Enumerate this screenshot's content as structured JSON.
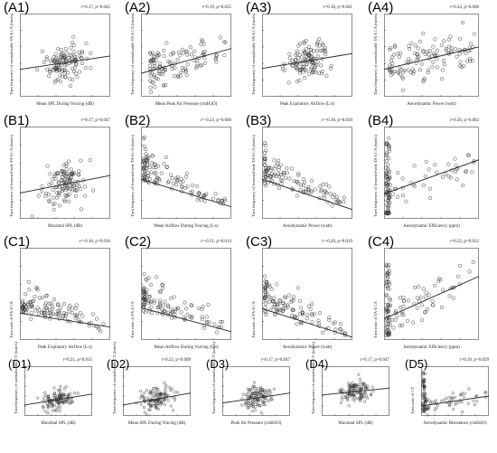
{
  "figure": {
    "panels": [
      {
        "id": "A1",
        "label": "(A1)",
        "stat": "r=0.17, p=0.045",
        "xlabel": "Mean SPL During Voicing (dB)",
        "ylabel": "Turn frequency of normalizable TA-LCA (turn/s)"
      },
      {
        "id": "A2",
        "label": "(A2)",
        "stat": "r=0.19, p=0.025",
        "xlabel": "Mean Peak Air Pressure (cmH2O)",
        "ylabel": "Turn frequency of normalizable TA-LCA (turn/s)"
      },
      {
        "id": "A3",
        "label": "(A3)",
        "stat": "r=0.18, p=0.041",
        "xlabel": "Peak Expiratory Airflow (L/s)",
        "ylabel": "Turn frequency of normalizable TA-LCA (turn/s)"
      },
      {
        "id": "A4",
        "label": "(A4)",
        "stat": "r=0.24, p=0.006",
        "xlabel": "Aerodynamic Power (watt)",
        "ylabel": "Turn frequency of normalizable TA-LCA (turn/s)"
      },
      {
        "id": "B1",
        "label": "(B1)",
        "stat": "r=0.17, p=0.047",
        "xlabel": "Maximal SPL (dB)",
        "ylabel": "Turn frequency of lessened-side TA-LCA (turn/s)"
      },
      {
        "id": "B2",
        "label": "(B2)",
        "stat": "r=-0.23, p=0.008",
        "xlabel": "Mean Airflow During Voicing (L/s)",
        "ylabel": "Turn frequency of lessened-side TA-LCA (turn/s)"
      },
      {
        "id": "B3",
        "label": "(B3)",
        "stat": "r=-0.18, p=0.039",
        "xlabel": "Aerodynamic Power (watt)",
        "ylabel": "Turn frequency of lessened-side TA-LCA (turn/s)"
      },
      {
        "id": "B4",
        "label": "(B4)",
        "stat": "r=0.26, p=0.002",
        "xlabel": "Aerodynamic Efficiency (ppm)",
        "ylabel": "Turn frequency of lessened-side TA-LCA (turn/s)"
      },
      {
        "id": "C1",
        "label": "(C1)",
        "stat": "r=-0.18, p=0.036",
        "xlabel": "Peak Expiratory Airflow (L/s)",
        "ylabel": "Turn ratio of TA-LCA"
      },
      {
        "id": "C2",
        "label": "(C2)",
        "stat": "r=-0.21, p=0.014",
        "xlabel": "Mean Airflow During Voicing (L/s)",
        "ylabel": "Turn ratio of TA-LCA"
      },
      {
        "id": "C3",
        "label": "(C3)",
        "stat": "r=-0.20, p=0.019",
        "xlabel": "Aerodynamic Power (watt)",
        "ylabel": "Turn ratio of TA-LCA"
      },
      {
        "id": "C4",
        "label": "(C4)",
        "stat": "r=0.22, p=0.012",
        "xlabel": "Aerodynamic Efficiency (ppm)",
        "ylabel": "Turn ratio of TA-LCA"
      },
      {
        "id": "D1",
        "label": "(D1)",
        "stat": "r=0.21, p=0.015",
        "xlabel": "Maximal SPL (dB)",
        "ylabel": "Turn frequency of normalizable CT (turn/s)"
      },
      {
        "id": "D2",
        "label": "(D2)",
        "stat": "r=0.22, p=0.009",
        "xlabel": "Mean SPL During Voicing (dB)",
        "ylabel": "Turn frequency of normalizable CT (turn/s)"
      },
      {
        "id": "D3",
        "label": "(D3)",
        "stat": "r=0.17, p=0.047",
        "xlabel": "Peak Air Pressure (cmH2O)",
        "ylabel": "Turn frequency of normalizable CT (turn/s)"
      },
      {
        "id": "D4",
        "label": "(D4)",
        "stat": "r=0.17, p=0.047",
        "xlabel": "Maximal SPL (dB)",
        "ylabel": "Turn frequency of normalizable CT (turn/s)"
      },
      {
        "id": "D5",
        "label": "(D5)",
        "stat": "r=0.19, p=0.029",
        "xlabel": "Aerodynamic Resistance (cmH2O)",
        "ylabel": "Turn ratio of CT"
      }
    ]
  },
  "chart_data": [
    {
      "type": "scatter",
      "panel": "A1",
      "r": 0.17,
      "p": 0.045,
      "pattern": "centered",
      "fit": {
        "x": [
          0,
          1
        ],
        "y": [
          0.33,
          0.49
        ]
      }
    },
    {
      "type": "scatter",
      "panel": "A2",
      "r": 0.19,
      "p": 0.025,
      "pattern": "left_cluster",
      "fit": {
        "x": [
          0,
          1
        ],
        "y": [
          0.28,
          0.58
        ]
      }
    },
    {
      "type": "scatter",
      "panel": "A3",
      "r": 0.18,
      "p": 0.041,
      "pattern": "centered",
      "fit": {
        "x": [
          0,
          1
        ],
        "y": [
          0.34,
          0.52
        ]
      }
    },
    {
      "type": "scatter",
      "panel": "A4",
      "r": 0.24,
      "p": 0.006,
      "pattern": "left_spread",
      "fit": {
        "x": [
          0,
          1
        ],
        "y": [
          0.33,
          0.6
        ]
      }
    },
    {
      "type": "scatter",
      "panel": "B1",
      "r": 0.17,
      "p": 0.047,
      "pattern": "centered",
      "fit": {
        "x": [
          0,
          1
        ],
        "y": [
          0.28,
          0.47
        ]
      }
    },
    {
      "type": "scatter",
      "panel": "B2",
      "r": -0.23,
      "p": 0.008,
      "pattern": "left_decay",
      "fit": {
        "x": [
          0,
          1
        ],
        "y": [
          0.43,
          0.13
        ]
      }
    },
    {
      "type": "scatter",
      "panel": "B3",
      "r": -0.18,
      "p": 0.039,
      "pattern": "left_decay",
      "fit": {
        "x": [
          0,
          1
        ],
        "y": [
          0.43,
          0.1
        ]
      }
    },
    {
      "type": "scatter",
      "panel": "B4",
      "r": 0.26,
      "p": 0.002,
      "pattern": "edge_column",
      "fit": {
        "x": [
          0,
          1
        ],
        "y": [
          0.27,
          0.64
        ]
      }
    },
    {
      "type": "scatter",
      "panel": "C1",
      "r": -0.18,
      "p": 0.036,
      "pattern": "left_decay",
      "fit": {
        "x": [
          0,
          1
        ],
        "y": [
          0.29,
          0.14
        ]
      }
    },
    {
      "type": "scatter",
      "panel": "C2",
      "r": -0.21,
      "p": 0.014,
      "pattern": "left_decay",
      "fit": {
        "x": [
          0,
          1
        ],
        "y": [
          0.35,
          0.09
        ]
      }
    },
    {
      "type": "scatter",
      "panel": "C3",
      "r": -0.2,
      "p": 0.019,
      "pattern": "left_decay",
      "fit": {
        "x": [
          0,
          1
        ],
        "y": [
          0.34,
          0.03
        ]
      }
    },
    {
      "type": "scatter",
      "panel": "C4",
      "r": 0.22,
      "p": 0.012,
      "pattern": "edge_column",
      "fit": {
        "x": [
          0,
          1
        ],
        "y": [
          0.23,
          0.69
        ]
      }
    },
    {
      "type": "scatter",
      "panel": "D1",
      "r": 0.21,
      "p": 0.015,
      "pattern": "centered",
      "fit": {
        "x": [
          0,
          1
        ],
        "y": [
          0.22,
          0.44
        ]
      }
    },
    {
      "type": "scatter",
      "panel": "D2",
      "r": 0.22,
      "p": 0.009,
      "pattern": "centered",
      "fit": {
        "x": [
          0,
          1
        ],
        "y": [
          0.22,
          0.46
        ]
      }
    },
    {
      "type": "scatter",
      "panel": "D3",
      "r": 0.17,
      "p": 0.047,
      "pattern": "centered",
      "fit": {
        "x": [
          0,
          1
        ],
        "y": [
          0.26,
          0.46
        ]
      }
    },
    {
      "type": "scatter",
      "panel": "D4",
      "r": 0.17,
      "p": 0.047,
      "pattern": "centered",
      "fit": {
        "x": [
          0,
          1
        ],
        "y": [
          0.42,
          0.56
        ]
      }
    },
    {
      "type": "scatter",
      "panel": "D5",
      "r": 0.19,
      "p": 0.029,
      "pattern": "edge_column",
      "fit": {
        "x": [
          0,
          1
        ],
        "y": [
          0.2,
          0.4
        ]
      }
    }
  ]
}
